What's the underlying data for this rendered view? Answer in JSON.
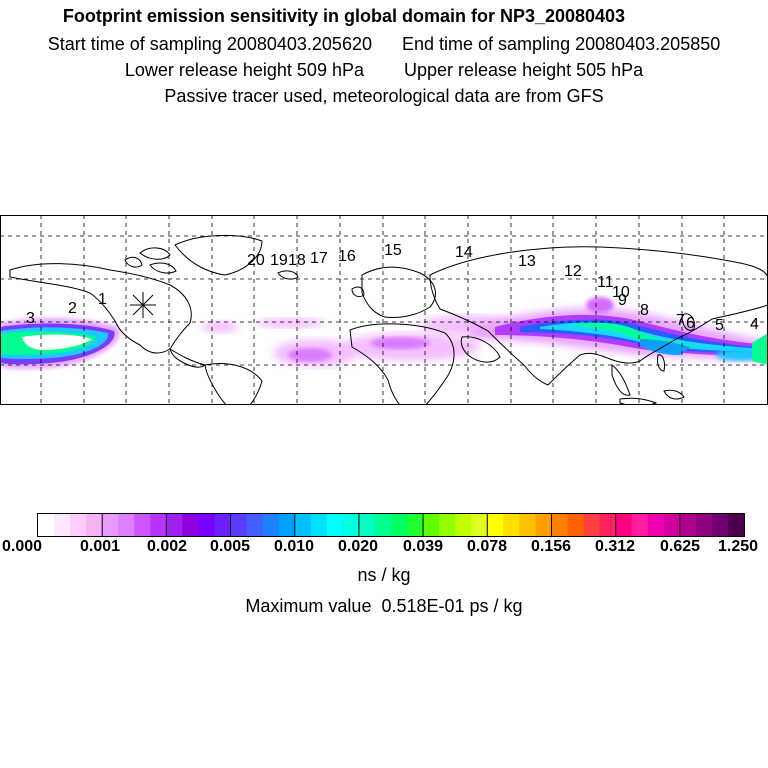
{
  "header": {
    "title": "Footprint emission sensitivity in global domain for NP3_20080403",
    "start_time": "Start time of sampling 20080403.205620",
    "end_time": "End time of sampling 20080403.205850",
    "lower_height": "Lower release height  509 hPa",
    "upper_height": "Upper release height  505 hPa",
    "note": "Passive tracer used, meteorological data are from GFS"
  },
  "map": {
    "markers": [
      "1",
      "2",
      "3",
      "4",
      "5",
      "6",
      "7",
      "8",
      "9",
      "10",
      "11",
      "12",
      "13",
      "14",
      "15",
      "16",
      "17",
      "18",
      "19",
      "20"
    ]
  },
  "colorbar": {
    "tick_labels": [
      "0.000",
      "0.001",
      "0.002",
      "0.005",
      "0.010",
      "0.020",
      "0.039",
      "0.078",
      "0.156",
      "0.312",
      "0.625",
      "1.250"
    ],
    "colors": [
      "#ffffff",
      "#ffe6ff",
      "#ffccff",
      "#f5b3f5",
      "#ea99ff",
      "#dd80ff",
      "#cc55ff",
      "#bb33ff",
      "#a020f0",
      "#9000e0",
      "#7a00ff",
      "#6a20ff",
      "#5a3cff",
      "#4060ff",
      "#2080ff",
      "#00a0ff",
      "#00c0ff",
      "#00e0ff",
      "#00ffff",
      "#00ffe0",
      "#00ffc0",
      "#00ff90",
      "#00ff60",
      "#20ff30",
      "#60ff00",
      "#90ff00",
      "#c0ff00",
      "#e0ff20",
      "#ffff00",
      "#ffe000",
      "#ffc000",
      "#ffa000",
      "#ff8000",
      "#ff6000",
      "#ff4040",
      "#ff2060",
      "#ff0080",
      "#ff20a0",
      "#f000b0",
      "#d000a0",
      "#b00090",
      "#900080",
      "#700070",
      "#500050"
    ],
    "unit": "ns / kg",
    "max_value": "Maximum value  0.518E-01 ps / kg"
  }
}
